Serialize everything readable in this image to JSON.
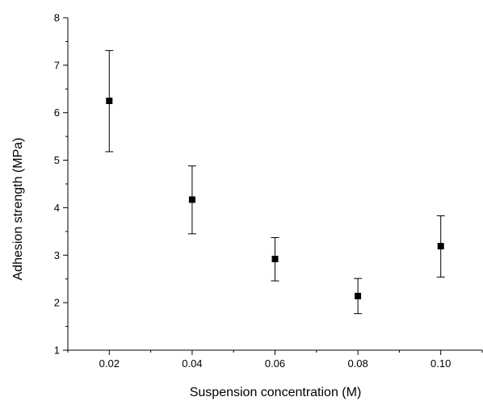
{
  "chart_data": {
    "type": "scatter",
    "xlabel": "Suspension concentration (M)",
    "ylabel": "Adhesion strength (MPa)",
    "xlim": [
      0.01,
      0.11
    ],
    "ylim": [
      1,
      8
    ],
    "x_ticks": [
      "0.02",
      "0.04",
      "0.06",
      "0.08",
      "0.10"
    ],
    "y_ticks": [
      "1",
      "2",
      "3",
      "4",
      "5",
      "6",
      "7",
      "8"
    ],
    "grid": false,
    "legend": "none",
    "marker": "square",
    "color": "#000000",
    "points": [
      {
        "x": 0.02,
        "y": 6.25,
        "err_low": 5.18,
        "err_high": 7.31
      },
      {
        "x": 0.04,
        "y": 4.17,
        "err_low": 3.45,
        "err_high": 4.88
      },
      {
        "x": 0.06,
        "y": 2.92,
        "err_low": 2.46,
        "err_high": 3.37
      },
      {
        "x": 0.08,
        "y": 2.14,
        "err_low": 1.77,
        "err_high": 2.51
      },
      {
        "x": 0.1,
        "y": 3.19,
        "err_low": 2.54,
        "err_high": 3.83
      }
    ]
  }
}
